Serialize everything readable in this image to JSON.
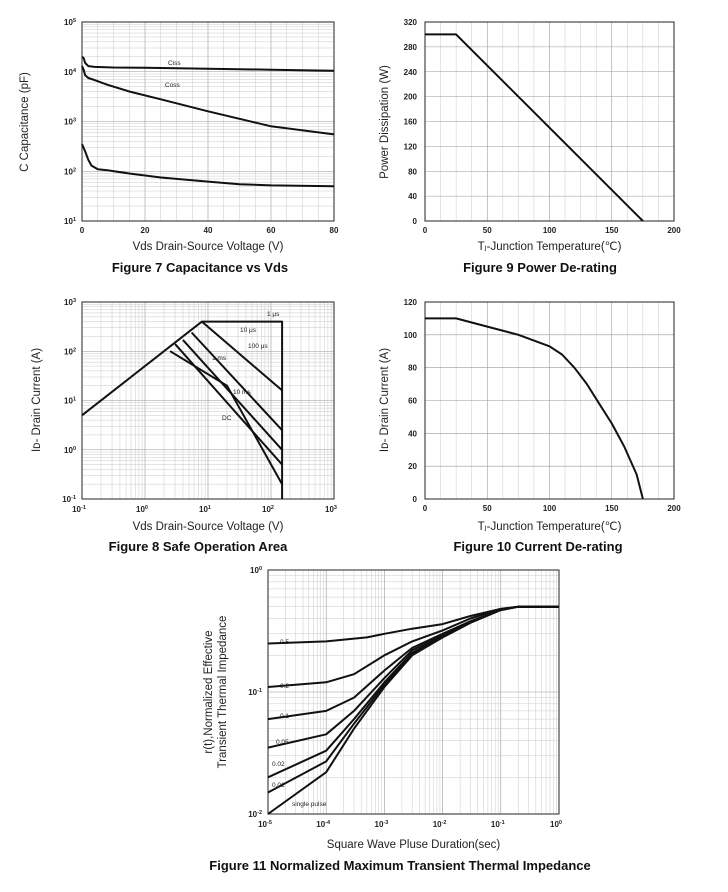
{
  "chart_data": [
    {
      "id": "fig7",
      "type": "line",
      "caption": "Figure 7 Capacitance vs Vds",
      "xlabel": "Vds Drain-Source Voltage (V)",
      "ylabel": "C Capacitance (pF)",
      "xscale": "linear",
      "yscale": "log",
      "xlim": [
        0,
        80
      ],
      "ylim": [
        10,
        100000
      ],
      "x_ticks": [
        "0",
        "20",
        "40",
        "60",
        "80"
      ],
      "y_ticks": [
        {
          "b": "10",
          "e": "1"
        },
        {
          "b": "10",
          "e": "2"
        },
        {
          "b": "10",
          "e": "3"
        },
        {
          "b": "10",
          "e": "4"
        },
        {
          "b": "10",
          "e": "5"
        }
      ],
      "grid": true,
      "series": [
        {
          "name": "Ciss",
          "x": [
            0,
            0.5,
            1,
            2,
            4,
            10,
            20,
            40,
            60,
            80
          ],
          "y": [
            20000,
            19000,
            15000,
            13000,
            12500,
            12200,
            12000,
            11500,
            11000,
            10500
          ]
        },
        {
          "name": "Coss",
          "x": [
            0,
            0.5,
            1,
            2,
            4,
            8,
            15,
            25,
            40,
            60,
            80
          ],
          "y": [
            13000,
            11000,
            8500,
            7500,
            6800,
            5500,
            4000,
            2800,
            1600,
            800,
            550
          ]
        },
        {
          "name": "",
          "x": [
            0,
            1,
            2,
            3,
            5,
            8,
            15,
            25,
            40,
            50,
            60,
            80
          ],
          "y": [
            350,
            250,
            170,
            130,
            110,
            105,
            90,
            75,
            62,
            55,
            52,
            50
          ]
        }
      ]
    },
    {
      "id": "fig9",
      "type": "line",
      "caption": "Figure 9 Power De-rating",
      "xlabel": "Tⱼ-Junction Temperature(℃)",
      "ylabel": "Power Dissipation (W)",
      "xscale": "linear",
      "yscale": "linear",
      "xlim": [
        0,
        200
      ],
      "ylim": [
        0,
        320
      ],
      "x_ticks": [
        "0",
        "50",
        "100",
        "150",
        "200"
      ],
      "y_ticks": [
        "0",
        "40",
        "80",
        "120",
        "160",
        "200",
        "240",
        "280",
        "320"
      ],
      "grid": true,
      "series": [
        {
          "name": "",
          "x": [
            0,
            25,
            175
          ],
          "y": [
            300,
            300,
            0
          ]
        }
      ]
    },
    {
      "id": "fig8",
      "type": "line",
      "caption": "Figure 8 Safe Operation Area",
      "xlabel": "Vds Drain-Source Voltage (V)",
      "ylabel": "Iᴅ- Drain Current (A)",
      "xscale": "log",
      "yscale": "log",
      "xlim": [
        0.1,
        1000
      ],
      "ylim": [
        0.1,
        1000
      ],
      "x_ticks": [
        {
          "b": "10",
          "e": "-1"
        },
        {
          "b": "10",
          "e": "0"
        },
        {
          "b": "10",
          "e": "1"
        },
        {
          "b": "10",
          "e": "2"
        },
        {
          "b": "10",
          "e": "3"
        }
      ],
      "y_ticks": [
        {
          "b": "10",
          "e": "-1"
        },
        {
          "b": "10",
          "e": "0"
        },
        {
          "b": "10",
          "e": "1"
        },
        {
          "b": "10",
          "e": "2"
        },
        {
          "b": "10",
          "e": "3"
        }
      ],
      "grid": true,
      "annotations": [
        "1 μs",
        "10 μs",
        "100 μs",
        "1 ms",
        "10 ms",
        "DC"
      ],
      "series": [
        {
          "name": "1 μs",
          "x": [
            0.1,
            8,
            150,
            150
          ],
          "y": [
            5,
            400,
            400,
            0.1
          ]
        },
        {
          "name": "10 μs",
          "x": [
            8,
            150
          ],
          "y": [
            400,
            16
          ]
        },
        {
          "name": "100 μs",
          "x": [
            5.5,
            150
          ],
          "y": [
            240,
            2.5
          ]
        },
        {
          "name": "1 ms",
          "x": [
            4,
            150
          ],
          "y": [
            170,
            1
          ]
        },
        {
          "name": "10 ms",
          "x": [
            3,
            150
          ],
          "y": [
            140,
            0.5
          ]
        },
        {
          "name": "DC",
          "x": [
            2.5,
            20,
            150
          ],
          "y": [
            100,
            20,
            0.2
          ]
        }
      ]
    },
    {
      "id": "fig10",
      "type": "line",
      "caption": "Figure 10 Current De-rating",
      "xlabel": "Tⱼ-Junction Temperature(℃)",
      "ylabel": "Iᴅ- Drain Current (A)",
      "xscale": "linear",
      "yscale": "linear",
      "xlim": [
        0,
        200
      ],
      "ylim": [
        0,
        120
      ],
      "x_ticks": [
        "0",
        "50",
        "100",
        "150",
        "200"
      ],
      "y_ticks": [
        "0",
        "20",
        "40",
        "60",
        "80",
        "100",
        "120"
      ],
      "grid": true,
      "series": [
        {
          "name": "",
          "x": [
            0,
            25,
            50,
            75,
            100,
            110,
            120,
            130,
            140,
            150,
            160,
            170,
            175
          ],
          "y": [
            110,
            110,
            105,
            100,
            93,
            88,
            80,
            70,
            58,
            46,
            32,
            15,
            0
          ]
        }
      ]
    },
    {
      "id": "fig11",
      "type": "line",
      "caption": "Figure 11 Normalized Maximum Transient Thermal Impedance",
      "xlabel": "Square Wave Pluse Duration(sec)",
      "ylabel": [
        "r(t),Normalized Effective",
        "Transient Thermal Impedance"
      ],
      "xscale": "log",
      "yscale": "log",
      "xlim": [
        1e-05,
        1
      ],
      "ylim": [
        0.01,
        1
      ],
      "x_ticks": [
        {
          "b": "10",
          "e": "-5"
        },
        {
          "b": "10",
          "e": "-4"
        },
        {
          "b": "10",
          "e": "-3"
        },
        {
          "b": "10",
          "e": "-2"
        },
        {
          "b": "10",
          "e": "-1"
        },
        {
          "b": "10",
          "e": "0"
        }
      ],
      "y_ticks": [
        {
          "b": "10",
          "e": "-2"
        },
        {
          "b": "10",
          "e": "-1"
        },
        {
          "b": "10",
          "e": "0"
        }
      ],
      "grid": true,
      "series": [
        {
          "name": "0.5",
          "x": [
            1e-05,
            0.0001,
            0.0005,
            0.001,
            0.003,
            0.01,
            0.03,
            0.1,
            0.2,
            1
          ],
          "y": [
            0.25,
            0.26,
            0.28,
            0.3,
            0.33,
            0.36,
            0.42,
            0.48,
            0.5,
            0.5
          ]
        },
        {
          "name": "0.2",
          "x": [
            1e-05,
            0.0001,
            0.0003,
            0.001,
            0.003,
            0.01,
            0.03,
            0.1,
            0.2,
            1
          ],
          "y": [
            0.11,
            0.12,
            0.14,
            0.2,
            0.26,
            0.32,
            0.4,
            0.48,
            0.5,
            0.5
          ]
        },
        {
          "name": "0.1",
          "x": [
            1e-05,
            0.0001,
            0.0003,
            0.001,
            0.003,
            0.01,
            0.03,
            0.1,
            0.2,
            1
          ],
          "y": [
            0.06,
            0.07,
            0.09,
            0.15,
            0.23,
            0.3,
            0.38,
            0.47,
            0.5,
            0.5
          ]
        },
        {
          "name": "0.05",
          "x": [
            1e-05,
            0.0001,
            0.0003,
            0.001,
            0.003,
            0.01,
            0.03,
            0.1,
            0.2,
            1
          ],
          "y": [
            0.035,
            0.045,
            0.07,
            0.13,
            0.22,
            0.29,
            0.38,
            0.47,
            0.5,
            0.5
          ]
        },
        {
          "name": "0.02",
          "x": [
            1e-05,
            0.0001,
            0.0003,
            0.001,
            0.003,
            0.01,
            0.03,
            0.1,
            0.2,
            1
          ],
          "y": [
            0.02,
            0.033,
            0.06,
            0.12,
            0.21,
            0.285,
            0.37,
            0.47,
            0.5,
            0.5
          ]
        },
        {
          "name": "0.01",
          "x": [
            1e-05,
            0.0001,
            0.0003,
            0.001,
            0.003,
            0.01,
            0.03,
            0.1,
            0.2,
            1
          ],
          "y": [
            0.015,
            0.027,
            0.055,
            0.115,
            0.205,
            0.28,
            0.37,
            0.47,
            0.5,
            0.5
          ]
        },
        {
          "name": "single pulse",
          "x": [
            1e-05,
            0.0001,
            0.0003,
            0.001,
            0.003,
            0.01,
            0.03,
            0.1,
            0.2,
            1
          ],
          "y": [
            0.01,
            0.022,
            0.05,
            0.11,
            0.2,
            0.28,
            0.37,
            0.47,
            0.5,
            0.5
          ]
        }
      ]
    }
  ]
}
